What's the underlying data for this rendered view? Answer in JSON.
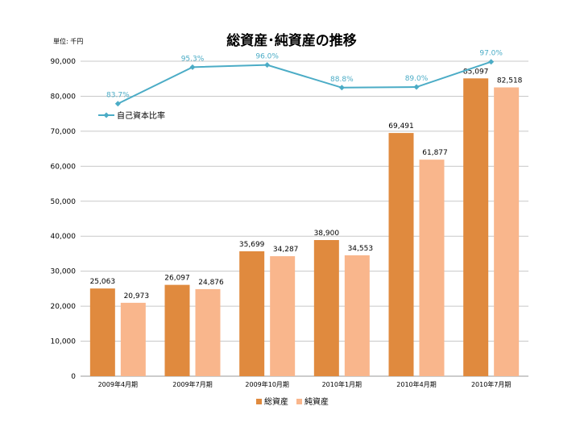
{
  "unit_label": "単位: 千円",
  "chart_data": {
    "type": "bar",
    "title": "総資産･純資産の推移",
    "categories": [
      "2009年4月期",
      "2009年7月期",
      "2009年10月期",
      "2010年1月期",
      "2010年4月期",
      "2010年7月期"
    ],
    "ylim": [
      0,
      90000
    ],
    "y_ticks": [
      "0",
      "10,000",
      "20,000",
      "30,000",
      "40,000",
      "50,000",
      "60,000",
      "70,000",
      "80,000",
      "90,000"
    ],
    "grid": true,
    "series": [
      {
        "name": "総資産",
        "color": "#e08a3e",
        "values": [
          25063,
          26097,
          35699,
          38900,
          69491,
          85097
        ],
        "labels": [
          "25,063",
          "26,097",
          "35,699",
          "38,900",
          "69,491",
          "85,097"
        ]
      },
      {
        "name": "純資産",
        "color": "#f9b68c",
        "values": [
          20973,
          24876,
          34287,
          34553,
          61877,
          82518
        ],
        "labels": [
          "20,973",
          "24,876",
          "34,287",
          "34,553",
          "61,877",
          "82,518"
        ]
      }
    ],
    "line_series": {
      "name": "自己資本比率",
      "color": "#4bacc6",
      "values": [
        83.7,
        95.3,
        96.0,
        88.8,
        89.0,
        97.0
      ],
      "labels": [
        "83.7%",
        "95.3%",
        "96.0%",
        "88.8%",
        "89.0%",
        "97.0%"
      ]
    },
    "bar_legend_placement": "bottom",
    "line_legend_placement": "top-left"
  }
}
